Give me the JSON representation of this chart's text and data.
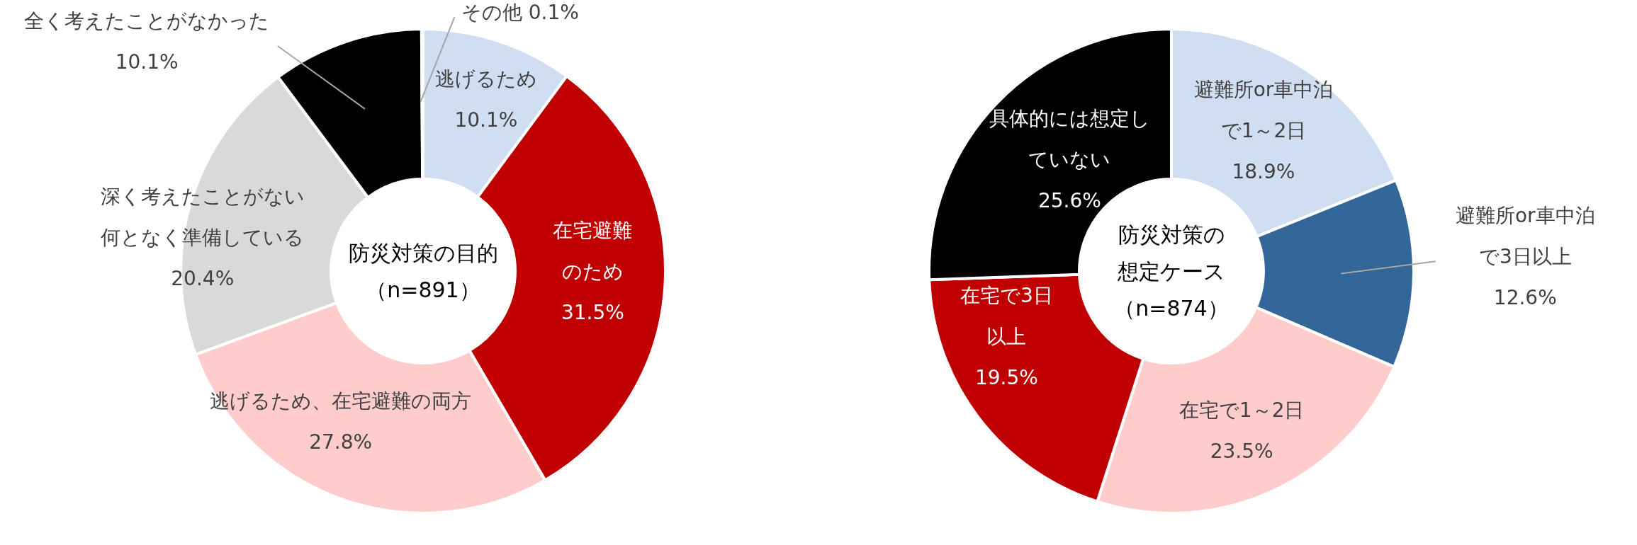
{
  "chart_data": [
    {
      "type": "donut",
      "title": "防災対策の目的（n=891）",
      "categories": [
        "逃げるため",
        "在宅避難のため",
        "逃げるため、在宅避難の両方",
        "深く考えたことがない何となく準備している",
        "全く考えたことがなかった",
        "その他"
      ],
      "values": [
        10.1,
        31.5,
        27.8,
        20.4,
        10.1,
        0.1
      ],
      "colors": [
        "#cfdef0",
        "#c00000",
        "#ffcccc",
        "#d9d9d9",
        "#000000",
        "#bfbfbf"
      ],
      "value_labels": [
        "10.1%",
        "31.5%",
        "27.8%",
        "20.4%",
        "10.1%",
        "0.1%"
      ]
    },
    {
      "type": "donut",
      "title": "防災対策の想定ケース（n=874）",
      "categories": [
        "避難所or車中泊で1～2日",
        "避難所or車中泊で3日以上",
        "在宅で1～2日",
        "在宅で3日以上",
        "具体的には想定していない"
      ],
      "values": [
        18.9,
        12.6,
        23.5,
        19.5,
        25.6
      ],
      "colors": [
        "#cfdef0",
        "#336699",
        "#ffcccc",
        "#c00000",
        "#000000"
      ],
      "value_labels": [
        "18.9%",
        "12.6%",
        "23.5%",
        "19.5%",
        "25.6%"
      ]
    }
  ]
}
